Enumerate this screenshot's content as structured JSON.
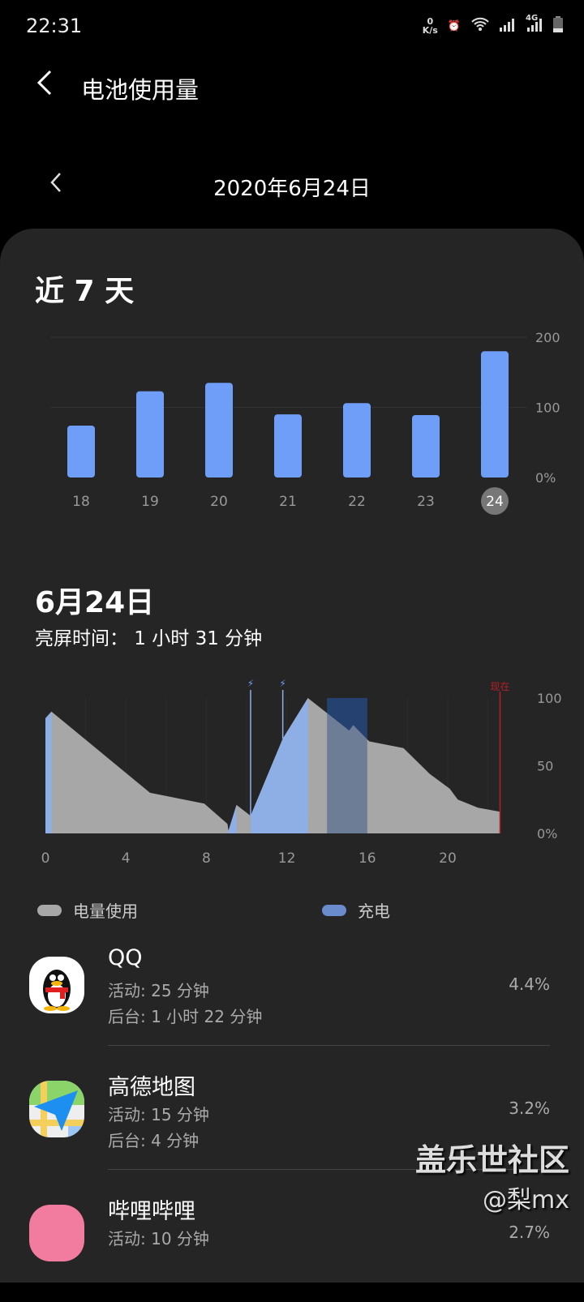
{
  "status": {
    "time": "22:31",
    "net_speed_value": "0",
    "net_speed_unit": "K/s",
    "network": "4G"
  },
  "header": {
    "title": "电池使用量",
    "date": "2020年6月24日"
  },
  "week": {
    "title": "近 7 天"
  },
  "day": {
    "title": "6月24日",
    "screen_time": "亮屏时间： 1 小时 31 分钟"
  },
  "legend": {
    "usage": "电量使用",
    "charging": "充电"
  },
  "colors": {
    "bar": "#6f9ef8",
    "usage_fill": "#a7a7a7",
    "charge_fill": "#8eaee6",
    "highlight": "#213a62",
    "now_line": "#b3202a",
    "background": "#252525"
  },
  "chart_data": [
    {
      "type": "bar",
      "categories": [
        "18",
        "19",
        "20",
        "21",
        "22",
        "23",
        "24"
      ],
      "values": [
        74,
        123,
        135,
        90,
        106,
        89,
        180
      ],
      "selected": "24",
      "yticks": [
        "200",
        "100",
        "0%"
      ],
      "ylim": [
        0,
        200
      ],
      "grid": true
    },
    {
      "type": "area",
      "x_ticks": [
        "0",
        "4",
        "8",
        "12",
        "16",
        "20"
      ],
      "yticks": [
        "100",
        "50",
        "0%"
      ],
      "xlim": [
        0,
        24
      ],
      "ylim": [
        0,
        100
      ],
      "points": [
        [
          0,
          85
        ],
        [
          0.3,
          90
        ],
        [
          5.2,
          30
        ],
        [
          7.9,
          22
        ],
        [
          9.05,
          7
        ],
        [
          9.1,
          2
        ],
        [
          9.5,
          21
        ],
        [
          10.2,
          13
        ],
        [
          11.8,
          70
        ],
        [
          13.05,
          100
        ],
        [
          15.1,
          76
        ],
        [
          15.3,
          80
        ],
        [
          16.1,
          68
        ],
        [
          17.8,
          63
        ],
        [
          19.1,
          44
        ],
        [
          20.1,
          33
        ],
        [
          20.5,
          25
        ],
        [
          21.5,
          19
        ],
        [
          22.6,
          16
        ]
      ],
      "charging_ranges": [
        [
          0,
          0.3
        ],
        [
          9.1,
          9.5
        ],
        [
          10.2,
          13.05
        ]
      ],
      "highlight_range": [
        14,
        16
      ],
      "charge_markers": [
        10.2,
        11.8
      ],
      "now": {
        "x": 22.6,
        "label": "现在"
      }
    }
  ],
  "apps": [
    {
      "name": "QQ",
      "active": "活动: 25 分钟",
      "background": "后台: 1 小时 22 分钟",
      "percent": "4.4%"
    },
    {
      "name": "高德地图",
      "active": "活动: 15 分钟",
      "background": "后台: 4 分钟",
      "percent": "3.2%"
    },
    {
      "name": "哔哩哔哩",
      "active": "活动: 10 分钟",
      "background": "",
      "percent": "2.7%"
    }
  ],
  "watermark": {
    "line1": "盖乐世社区",
    "line2": "@梨mx"
  }
}
